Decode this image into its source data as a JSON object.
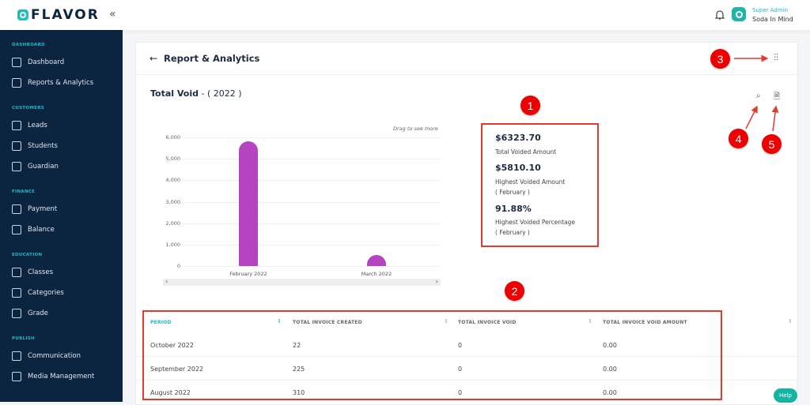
{
  "header": {
    "brand": "FLAVOR",
    "collapse_icon": "double-chevron-left",
    "role": "Super Admin",
    "user": "Soda In Mind"
  },
  "sidebar": {
    "sections": [
      {
        "title": "DASHBOARD",
        "items": [
          {
            "label": "Dashboard",
            "icon": "home-icon"
          },
          {
            "label": "Reports & Analytics",
            "icon": "chart-icon"
          }
        ]
      },
      {
        "title": "CUSTOMERS",
        "items": [
          {
            "label": "Leads",
            "icon": "signpost-icon"
          },
          {
            "label": "Students",
            "icon": "id-card-icon"
          },
          {
            "label": "Guardian",
            "icon": "guardian-icon"
          }
        ]
      },
      {
        "title": "FINANCE",
        "items": [
          {
            "label": "Payment",
            "icon": "credit-card-icon"
          },
          {
            "label": "Balance",
            "icon": "ledger-icon"
          }
        ]
      },
      {
        "title": "EDUCATION",
        "items": [
          {
            "label": "Classes",
            "icon": "book-icon"
          },
          {
            "label": "Categories",
            "icon": "layers-icon"
          },
          {
            "label": "Grade",
            "icon": "hierarchy-icon"
          }
        ]
      },
      {
        "title": "PUBLISH",
        "items": [
          {
            "label": "Communication",
            "icon": "message-icon"
          },
          {
            "label": "Media Management",
            "icon": "media-icon"
          }
        ]
      }
    ]
  },
  "page": {
    "title": "Report & Analytics",
    "chart_title": "Total Void",
    "chart_year": " - ( 2022 )",
    "drag_hint": "Drag to see more"
  },
  "chart_data": {
    "type": "bar",
    "categories": [
      "February 2022",
      "March 2022"
    ],
    "values": [
      5810.1,
      513.6
    ],
    "ylim": [
      0,
      6000
    ],
    "yticks": [
      "0",
      "1,000",
      "2,000",
      "3,000",
      "4,000",
      "5,000",
      "6,000"
    ],
    "grid": true,
    "color": "#b444c0"
  },
  "stats": [
    {
      "value": "$6323.70",
      "label": "Total Voided Amount",
      "sub": ""
    },
    {
      "value": "$5810.10",
      "label": "Highest Voided Amount",
      "sub": "( February )"
    },
    {
      "value": "91.88%",
      "label": "Highest Voided Percentage",
      "sub": "( February )"
    }
  ],
  "table": {
    "headers": [
      "PERIOD",
      "TOTAL INVOICE CREATED",
      "TOTAL INVOICE VOID",
      "TOTAL INVOICE VOID AMOUNT"
    ],
    "rows": [
      [
        "October 2022",
        "22",
        "0",
        "0.00"
      ],
      [
        "September 2022",
        "225",
        "0",
        "0.00"
      ],
      [
        "August 2022",
        "310",
        "0",
        "0.00"
      ]
    ]
  },
  "annotations": [
    "1",
    "2",
    "3",
    "4",
    "5"
  ],
  "help": "Help",
  "colors": {
    "sidebar": "#0b2440",
    "accent": "#22b8c7",
    "annotation": "#e23b2e"
  }
}
